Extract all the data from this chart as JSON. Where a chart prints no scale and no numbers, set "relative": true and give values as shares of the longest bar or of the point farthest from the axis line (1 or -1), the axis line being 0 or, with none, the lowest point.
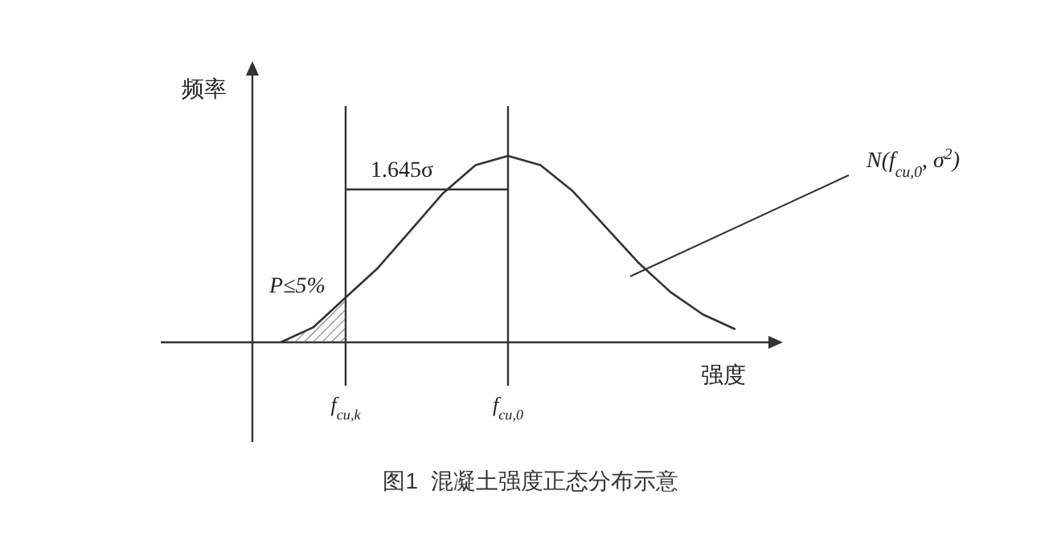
{
  "chart_data": {
    "type": "line",
    "relative": true,
    "title": "图1  混凝土强度正态分布示意",
    "xlabel": "强度",
    "ylabel": "频率",
    "categories": [
      null,
      null,
      "f$_{cu,k}$",
      null,
      null,
      null,
      null,
      "f$_{cu,0}$",
      null,
      null,
      null,
      null,
      null,
      null,
      null,
      null
    ],
    "series": [
      {
        "color": "#333333",
        "values": [
          0,
          0.08,
          0.24,
          0.4,
          0.6,
          0.8,
          0.95,
          1.0,
          0.95,
          0.81,
          0.62,
          0.43,
          0.27,
          0.15,
          0.07,
          null
        ]
      },
      {
        "type": "area",
        "color": "#555555",
        "values": [
          0,
          0.08,
          0.24,
          null,
          null,
          null,
          null,
          null,
          null,
          null,
          null,
          null,
          null,
          null,
          null,
          null
        ]
      },
      {
        "color": "#333333",
        "values": [
          null,
          null,
          0.82,
          null,
          null,
          null,
          null,
          0.82,
          null,
          null,
          null,
          null,
          null,
          null,
          null,
          null
        ]
      }
    ],
    "ref_lines": [
      {
        "axis": "x",
        "value": "f$_{cu,k}$",
        "color": "#333333"
      },
      {
        "axis": "x",
        "value": "f$_{cu,0}$",
        "color": "#333333"
      }
    ],
    "annotations": [
      "1.645σ",
      "P≤5%",
      "N(f$_{cu,0}$, σ$^{2}$)"
    ]
  }
}
